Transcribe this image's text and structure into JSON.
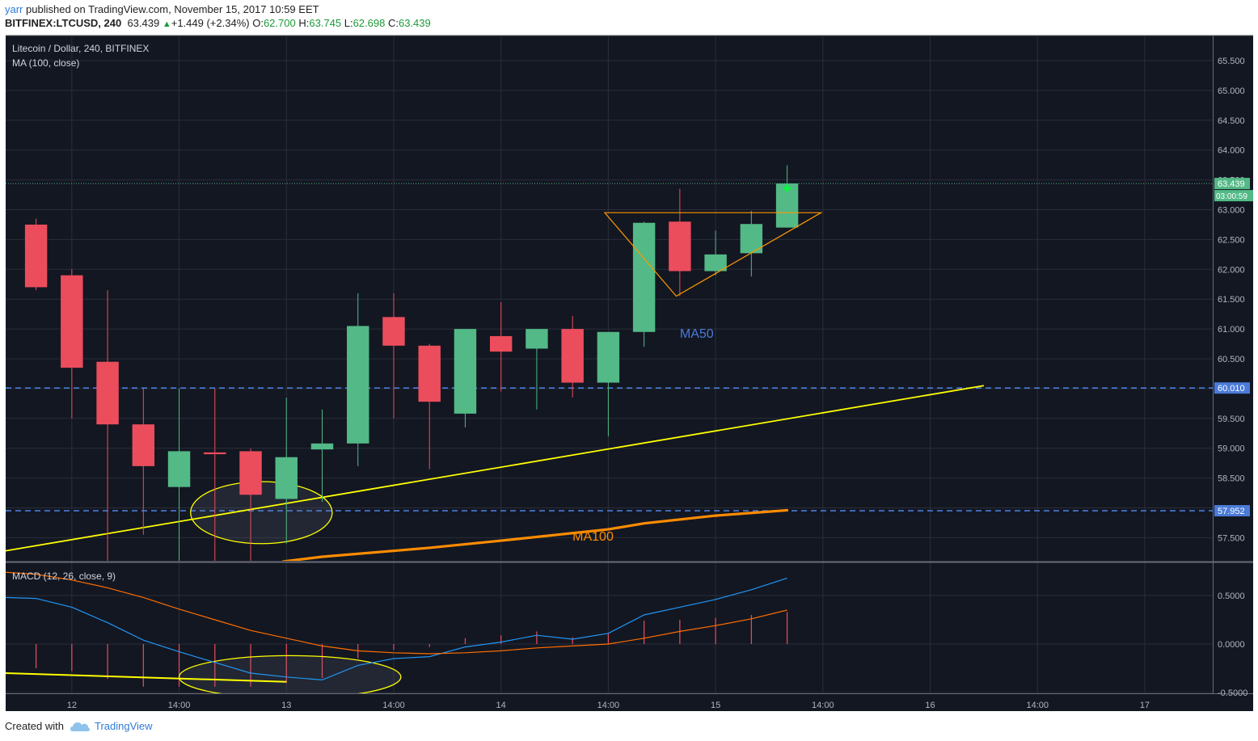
{
  "header": {
    "user": "yarr",
    "published": "published on TradingView.com, November 15, 2017 10:59 EET",
    "symbol": "BITFINEX:LTCUSD, 240",
    "last": "63.439",
    "change": "+1.449 (+2.34%)",
    "o_label": "O:",
    "o": "62.700",
    "h_label": "H:",
    "h": "63.745",
    "l_label": "L:",
    "l": "62.698",
    "c_label": "C:",
    "c": "63.439"
  },
  "footer": {
    "created": "Created with",
    "brand": "TradingView"
  },
  "colors": {
    "bg": "#131722",
    "grid": "#2a2e39",
    "up": "#53b987",
    "down": "#eb4d5c",
    "trend": "#ffff00",
    "ma100": "#ff8c00",
    "macd": "#2196f3",
    "signal": "#ff6d00",
    "level": "#4a7bd8",
    "triangle": "#ff9800",
    "hist": "#eb4d5c"
  },
  "chart_data": [
    {
      "type": "candlestick",
      "title": "Litecoin / Dollar, 240, BITFINEX",
      "indicator_label": "MA (100, close)",
      "ylim": [
        57.1,
        65.9
      ],
      "yticks": [
        "65.500",
        "65.000",
        "64.500",
        "64.000",
        "63.500",
        "63.000",
        "62.500",
        "62.000",
        "61.500",
        "61.000",
        "60.500",
        "60.000",
        "59.500",
        "59.000",
        "58.500",
        "58.000",
        "57.500"
      ],
      "xticks": [
        "12",
        "14:00",
        "13",
        "14:00",
        "14",
        "14:00",
        "15",
        "14:00",
        "16",
        "14:00",
        "17"
      ],
      "x_range": [
        -0.85,
        32.9
      ],
      "candles": [
        {
          "o": 62.75,
          "h": 62.85,
          "l": 61.65,
          "c": 61.7
        },
        {
          "o": 61.9,
          "h": 62.0,
          "l": 59.5,
          "c": 60.35
        },
        {
          "o": 60.45,
          "h": 61.65,
          "l": 57.0,
          "c": 59.4
        },
        {
          "o": 59.4,
          "h": 60.0,
          "l": 57.55,
          "c": 58.7
        },
        {
          "o": 58.35,
          "h": 60.0,
          "l": 57.0,
          "c": 58.95
        },
        {
          "o": 58.93,
          "h": 60.0,
          "l": 57.1,
          "c": 58.9
        },
        {
          "o": 58.95,
          "h": 59.0,
          "l": 57.0,
          "c": 58.22
        },
        {
          "o": 58.15,
          "h": 59.85,
          "l": 57.4,
          "c": 58.85
        },
        {
          "o": 58.98,
          "h": 59.65,
          "l": 58.1,
          "c": 59.08
        },
        {
          "o": 59.08,
          "h": 61.6,
          "l": 58.7,
          "c": 61.05
        },
        {
          "o": 61.2,
          "h": 61.6,
          "l": 59.5,
          "c": 60.72
        },
        {
          "o": 60.72,
          "h": 60.75,
          "l": 58.65,
          "c": 59.78
        },
        {
          "o": 59.58,
          "h": 61.0,
          "l": 59.35,
          "c": 61.0
        },
        {
          "o": 60.88,
          "h": 61.45,
          "l": 59.95,
          "c": 60.62
        },
        {
          "o": 60.67,
          "h": 61.0,
          "l": 59.65,
          "c": 61.0
        },
        {
          "o": 61.0,
          "h": 61.22,
          "l": 59.85,
          "c": 60.1
        },
        {
          "o": 60.1,
          "h": 60.95,
          "l": 59.2,
          "c": 60.95
        },
        {
          "o": 60.95,
          "h": 62.8,
          "l": 60.7,
          "c": 62.78
        },
        {
          "o": 62.8,
          "h": 63.35,
          "l": 61.55,
          "c": 61.97
        },
        {
          "o": 61.97,
          "h": 62.65,
          "l": 61.9,
          "c": 62.25
        },
        {
          "o": 62.27,
          "h": 62.98,
          "l": 61.88,
          "c": 62.76
        },
        {
          "o": 62.7,
          "h": 63.745,
          "l": 62.698,
          "c": 63.439
        }
      ],
      "levels": [
        {
          "value": 60.01,
          "label": "60.010"
        },
        {
          "value": 57.952,
          "label": "57.952"
        }
      ],
      "last_price": {
        "value": 63.439,
        "label": "63.439",
        "countdown": "03:00:59"
      },
      "ma100": [
        [
          6.9,
          57.1
        ],
        [
          8.0,
          57.18
        ],
        [
          11.0,
          57.33
        ],
        [
          13.0,
          57.45
        ],
        [
          16.0,
          57.64
        ],
        [
          17.0,
          57.74
        ],
        [
          19.0,
          57.87
        ],
        [
          21.0,
          57.96
        ]
      ],
      "trendline": [
        [
          -0.85,
          57.28
        ],
        [
          26.5,
          60.05
        ]
      ],
      "triangle": [
        [
          15.9,
          62.95
        ],
        [
          21.95,
          62.95
        ],
        [
          17.9,
          61.55
        ]
      ],
      "ellipse": {
        "cx": 6.3,
        "cy": 57.92,
        "rx": 1.98,
        "ry": 0.52
      },
      "annotations": [
        {
          "text": "MA50",
          "x": 18.0,
          "y": 60.85,
          "color": "#4a7bd8"
        },
        {
          "text": "MA100",
          "x": 15.0,
          "y": 57.45,
          "color": "#ff8c00"
        }
      ]
    },
    {
      "type": "line",
      "title": "MACD (12, 26, close, 9)",
      "ylim": [
        -0.5,
        0.85
      ],
      "yticks": [
        "0.5000",
        "0.0000",
        "-0.5000"
      ],
      "macd": [
        0.47,
        0.38,
        0.22,
        0.04,
        -0.08,
        -0.19,
        -0.3,
        -0.34,
        -0.37,
        -0.22,
        -0.15,
        -0.13,
        -0.03,
        0.02,
        0.09,
        0.05,
        0.11,
        0.3,
        0.38,
        0.46,
        0.56,
        0.68
      ],
      "signal": [
        0.72,
        0.66,
        0.58,
        0.48,
        0.36,
        0.25,
        0.14,
        0.06,
        -0.02,
        -0.07,
        -0.09,
        -0.1,
        -0.09,
        -0.07,
        -0.04,
        -0.02,
        0.0,
        0.06,
        0.13,
        0.19,
        0.26,
        0.35
      ],
      "histogram": [
        -0.25,
        -0.28,
        -0.36,
        -0.44,
        -0.44,
        -0.44,
        -0.44,
        -0.4,
        -0.35,
        -0.15,
        -0.06,
        -0.03,
        0.06,
        0.09,
        0.13,
        0.07,
        0.11,
        0.24,
        0.25,
        0.27,
        0.3,
        0.33
      ],
      "trendline": [
        [
          -0.85,
          -0.3
        ],
        [
          7.0,
          -0.39
        ]
      ],
      "ellipse": {
        "cx": 7.1,
        "cy": -0.34,
        "rx": 3.1,
        "ry": 0.22
      }
    }
  ]
}
